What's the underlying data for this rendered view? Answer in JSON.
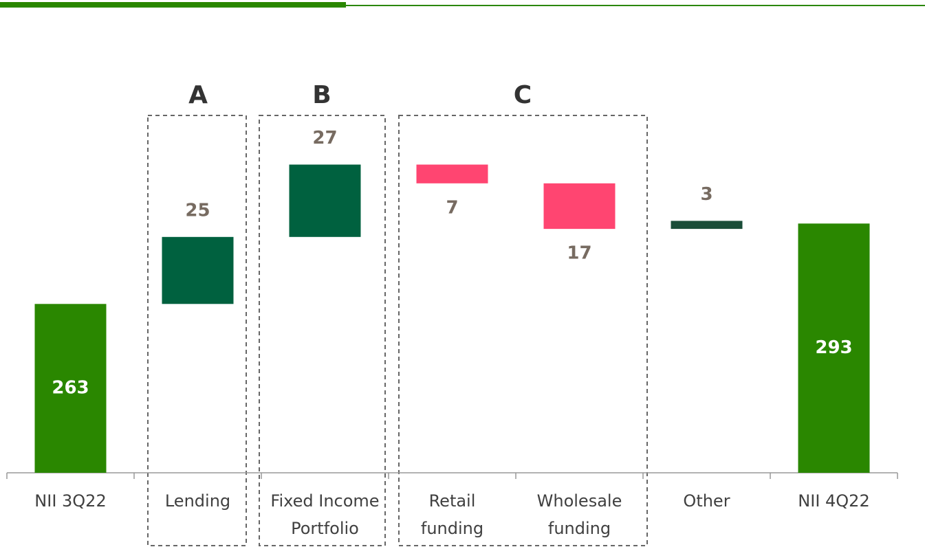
{
  "chart_data": {
    "type": "waterfall",
    "categories": [
      [
        "NII 3Q22"
      ],
      [
        "Lending"
      ],
      [
        "Fixed Income",
        "Portfolio"
      ],
      [
        "Retail",
        "funding"
      ],
      [
        "Wholesale",
        "funding"
      ],
      [
        "Other"
      ],
      [
        "NII 4Q22"
      ]
    ],
    "values": [
      263,
      25,
      27,
      -7,
      -17,
      3,
      293
    ],
    "value_labels": [
      "263",
      "25",
      "27",
      "7",
      "17",
      "3",
      "293"
    ],
    "colors": [
      "#2a8700",
      "#00613f",
      "#00613f",
      "#ff4571",
      "#ff4571",
      "#1a4d38",
      "#2a8700"
    ],
    "ylim": [
      200,
      330
    ],
    "groups": [
      {
        "label": "A"
      },
      {
        "label": "B"
      },
      {
        "label": "C"
      }
    ]
  }
}
